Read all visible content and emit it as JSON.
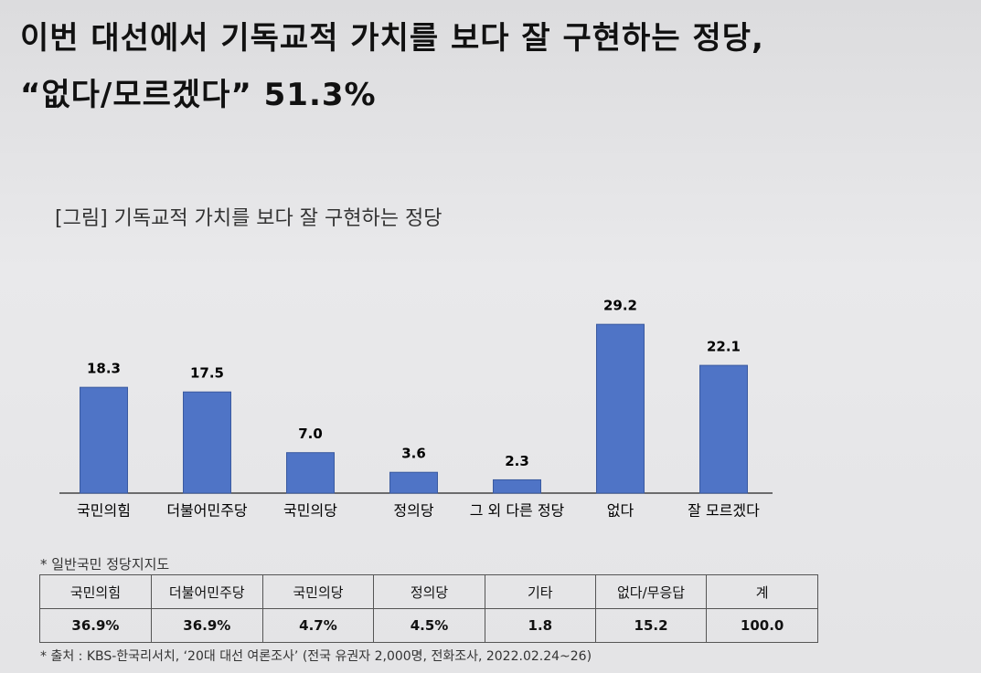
{
  "headline": [
    "이번 대선에서 기독교적 가치를 보다 잘 구현하는 정당,",
    "“없다/모르겠다” 51.3%"
  ],
  "chart_data": {
    "type": "bar",
    "title": "[그림] 기독교적 가치를 보다 잘 구현하는 정당",
    "categories": [
      "국민의힘",
      "더불어민주당",
      "국민의당",
      "정의당",
      "그 외 다른 정당",
      "없다",
      "잘 모르겠다"
    ],
    "values": [
      18.3,
      17.5,
      7.0,
      3.6,
      2.3,
      29.2,
      22.1
    ],
    "value_labels": [
      "18.3",
      "17.5",
      "7.0",
      "3.6",
      "2.3",
      "29.2",
      "22.1"
    ],
    "color": "#4f74c6"
  },
  "note": "* 일반국민 정당지지도",
  "table": {
    "rows": [
      [
        "국민의힘",
        "더불어민주당",
        "국민의당",
        "정의당",
        "기타",
        "없다/무응답",
        "계"
      ],
      [
        "36.9%",
        "36.9%",
        "4.7%",
        "4.5%",
        "1.8",
        "15.2",
        "100.0"
      ]
    ]
  },
  "source": "* 출처 : KBS-한국리서치, ‘20대 대선 여론조사’ (전국 유권자 2,000명, 전화조사, 2022.02.24~26)"
}
